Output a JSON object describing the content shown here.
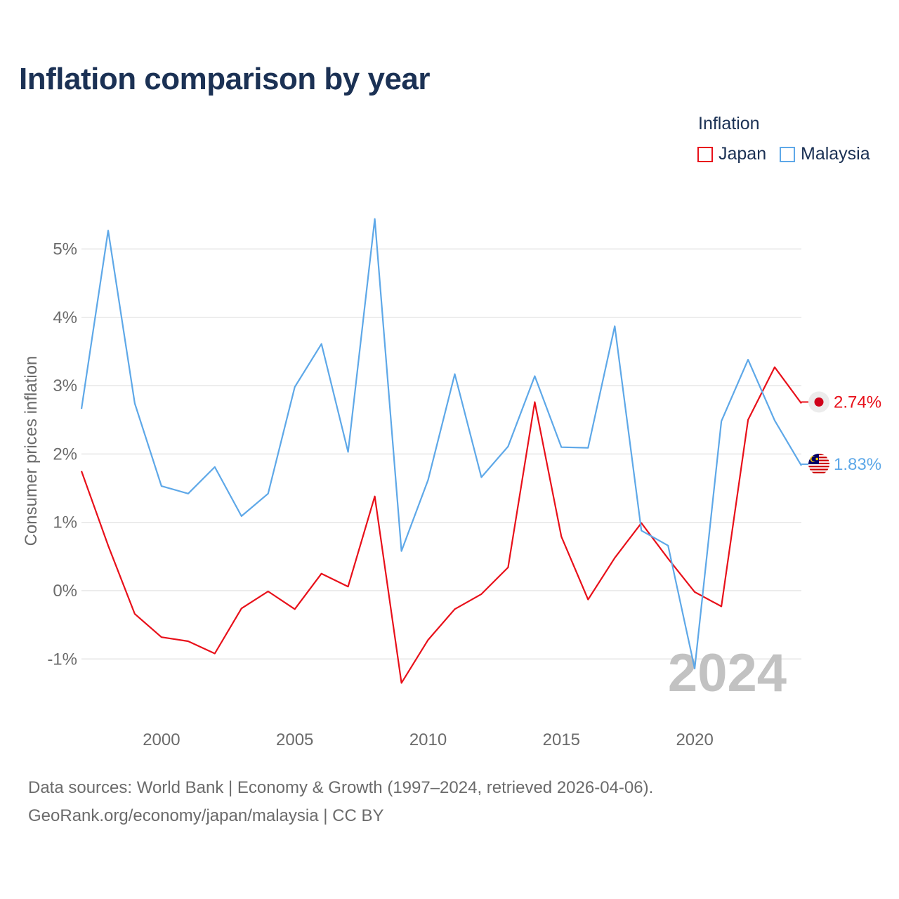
{
  "header": {
    "title": "Inflation comparison by year"
  },
  "legend": {
    "title": "Inflation",
    "items": [
      {
        "label": "Japan",
        "color": "#e8101a"
      },
      {
        "label": "Malaysia",
        "color": "#5ea8e8"
      }
    ]
  },
  "chart_data": {
    "type": "line",
    "title": "Inflation comparison by year",
    "xlabel": "",
    "ylabel": "Consumer prices inflation",
    "x": [
      1997,
      1998,
      1999,
      2000,
      2001,
      2002,
      2003,
      2004,
      2005,
      2006,
      2007,
      2008,
      2009,
      2010,
      2011,
      2012,
      2013,
      2014,
      2015,
      2016,
      2017,
      2018,
      2019,
      2020,
      2021,
      2022,
      2023,
      2024
    ],
    "xlim": [
      1997,
      2024
    ],
    "ylim": [
      -1.8,
      5.7
    ],
    "xticks": [
      2000,
      2005,
      2010,
      2015,
      2020
    ],
    "xtick_labels": [
      "2000",
      "2005",
      "2010",
      "2015",
      "2020"
    ],
    "yticks": [
      -1,
      0,
      1,
      2,
      3,
      4,
      5
    ],
    "ytick_labels": [
      "-1%",
      "0%",
      "1%",
      "2%",
      "3%",
      "4%",
      "5%"
    ],
    "grid": true,
    "watermark": "2024",
    "series": [
      {
        "name": "Japan",
        "color": "#e8101a",
        "end_label": "2.74%",
        "flag": "japan-flag-icon",
        "values": [
          1.75,
          0.66,
          -0.34,
          -0.68,
          -0.74,
          -0.92,
          -0.26,
          -0.01,
          -0.27,
          0.25,
          0.06,
          1.38,
          -1.35,
          -0.72,
          -0.27,
          -0.05,
          0.34,
          2.76,
          0.79,
          -0.13,
          0.48,
          0.99,
          0.47,
          -0.02,
          -0.23,
          2.5,
          3.27,
          2.74
        ]
      },
      {
        "name": "Malaysia",
        "color": "#5ea8e8",
        "end_label": "1.83%",
        "flag": "malaysia-flag-icon",
        "values": [
          2.66,
          5.27,
          2.74,
          1.53,
          1.42,
          1.81,
          1.09,
          1.42,
          2.98,
          3.61,
          2.03,
          5.44,
          0.58,
          1.62,
          3.17,
          1.66,
          2.11,
          3.14,
          2.1,
          2.09,
          3.87,
          0.88,
          0.66,
          -1.14,
          2.48,
          3.38,
          2.49,
          1.83
        ]
      }
    ]
  },
  "footer": {
    "source": "Data sources: World Bank | Economy & Growth (1997–2024, retrieved 2026-04-06).",
    "credit": "GeoRank.org/economy/japan/malaysia | CC BY"
  }
}
